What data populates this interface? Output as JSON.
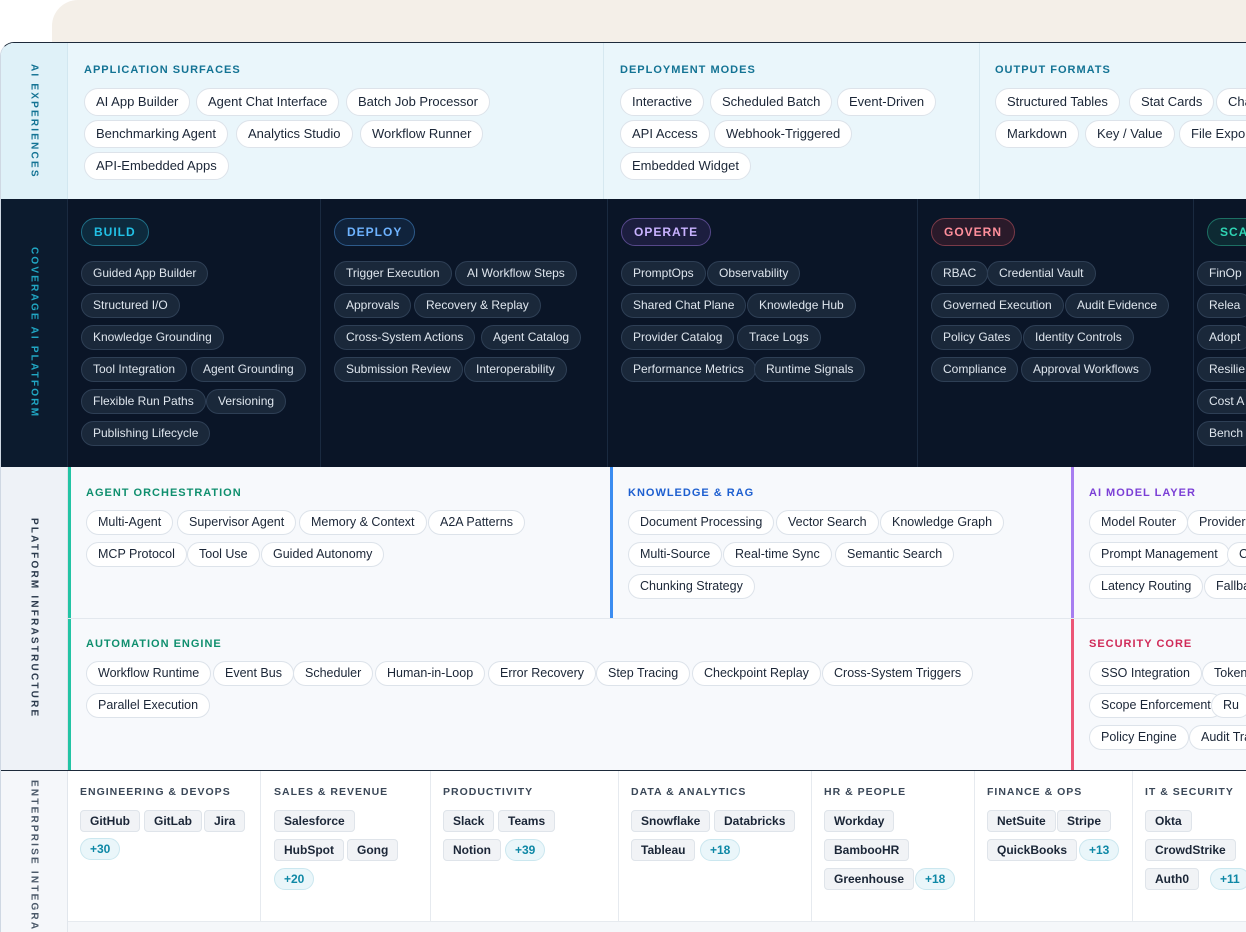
{
  "rows": {
    "ai_experiences": {
      "label": "AI EXPERIENCES",
      "sections": [
        {
          "title": "APPLICATION SURFACES",
          "items": [
            "AI App Builder",
            "Agent Chat Interface",
            "Batch Job Processor",
            "Benchmarking Agent",
            "Analytics Studio",
            "Workflow Runner",
            "API-Embedded Apps"
          ]
        },
        {
          "title": "DEPLOYMENT MODES",
          "items": [
            "Interactive",
            "Scheduled Batch",
            "Event-Driven",
            "API Access",
            "Webhook-Triggered",
            "Embedded Widget"
          ]
        },
        {
          "title": "OUTPUT FORMATS",
          "items": [
            "Structured Tables",
            "Stat Cards",
            "Cha",
            "Markdown",
            "Key / Value",
            "File Expor"
          ]
        }
      ]
    },
    "coverage": {
      "label": "COVERAGE AI PLATFORM",
      "phases": [
        {
          "name": "BUILD",
          "color": "#22c1e6",
          "items": [
            "Guided App Builder",
            "Structured I/O",
            "Knowledge Grounding",
            "Tool Integration",
            "Agent Grounding",
            "Flexible Run Paths",
            "Versioning",
            "Publishing Lifecycle"
          ]
        },
        {
          "name": "DEPLOY",
          "color": "#6eb3ff",
          "items": [
            "Trigger Execution",
            "AI Workflow Steps",
            "Approvals",
            "Recovery & Replay",
            "Cross-System Actions",
            "Agent Catalog",
            "Submission Review",
            "Interoperability"
          ]
        },
        {
          "name": "OPERATE",
          "color": "#c9b3ff",
          "items": [
            "PromptOps",
            "Observability",
            "Shared Chat Plane",
            "Knowledge Hub",
            "Provider Catalog",
            "Trace Logs",
            "Performance Metrics",
            "Runtime Signals"
          ]
        },
        {
          "name": "GOVERN",
          "color": "#ff8f9c",
          "items": [
            "RBAC",
            "Credential Vault",
            "Governed Execution",
            "Audit Evidence",
            "Policy Gates",
            "Identity Controls",
            "Compliance",
            "Approval Workflows"
          ]
        },
        {
          "name": "SCA",
          "color": "#2fd5b4",
          "items": [
            "FinOp",
            "Relea",
            "Adopt",
            "Resilie",
            "Cost A",
            "Bench"
          ]
        }
      ]
    },
    "platform": {
      "label": "PLATFORM INFRASTRUCTURE",
      "sections": [
        {
          "title": "AGENT ORCHESTRATION",
          "color": "#0f8f6e",
          "bar": "#22c4a4",
          "items": [
            "Multi-Agent",
            "Supervisor Agent",
            "Memory & Context",
            "A2A Patterns",
            "MCP Protocol",
            "Tool Use",
            "Guided Autonomy"
          ]
        },
        {
          "title": "KNOWLEDGE & RAG",
          "color": "#1d5fd0",
          "bar": "#3b8cf0",
          "items": [
            "Document Processing",
            "Vector Search",
            "Knowledge Graph",
            "Multi-Source",
            "Real-time Sync",
            "Semantic Search",
            "Chunking Strategy"
          ]
        },
        {
          "title": "AI MODEL LAYER",
          "color": "#7b3fd6",
          "bar": "#a77ef0",
          "items": [
            "Model Router",
            "Provider",
            "Prompt Management",
            "C",
            "Latency Routing",
            "Fallba"
          ]
        },
        {
          "title": "AUTOMATION ENGINE",
          "color": "#0f8f6e",
          "bar": "#22c4a4",
          "items": [
            "Workflow Runtime",
            "Event Bus",
            "Scheduler",
            "Human-in-Loop",
            "Error Recovery",
            "Step Tracing",
            "Checkpoint Replay",
            "Cross-System Triggers",
            "Parallel Execution"
          ]
        },
        {
          "title": "SECURITY CORE",
          "color": "#d02a58",
          "bar": "#ec5676",
          "items": [
            "SSO Integration",
            "Token",
            "Scope Enforcement",
            "Ru",
            "Policy Engine",
            "Audit Tra"
          ]
        }
      ]
    },
    "enterprise": {
      "label": "ENTERPRISE INTEGRA",
      "columns": [
        {
          "title": "ENGINEERING & DEVOPS",
          "tags": [
            "GitHub",
            "GitLab",
            "Jira"
          ],
          "more": "+30"
        },
        {
          "title": "SALES & REVENUE",
          "tags": [
            "Salesforce",
            "HubSpot",
            "Gong"
          ],
          "more": "+20"
        },
        {
          "title": "PRODUCTIVITY",
          "tags": [
            "Slack",
            "Teams",
            "Notion"
          ],
          "more": "+39"
        },
        {
          "title": "DATA & ANALYTICS",
          "tags": [
            "Snowflake",
            "Databricks",
            "Tableau"
          ],
          "more": "+18"
        },
        {
          "title": "HR & PEOPLE",
          "tags": [
            "Workday",
            "BambooHR",
            "Greenhouse"
          ],
          "more": "+18"
        },
        {
          "title": "FINANCE & OPS",
          "tags": [
            "NetSuite",
            "Stripe",
            "QuickBooks"
          ],
          "more": "+13"
        },
        {
          "title": "IT & SECURITY",
          "tags": [
            "Okta",
            "CrowdStrike",
            "Auth0"
          ],
          "more": "+11"
        }
      ]
    }
  }
}
